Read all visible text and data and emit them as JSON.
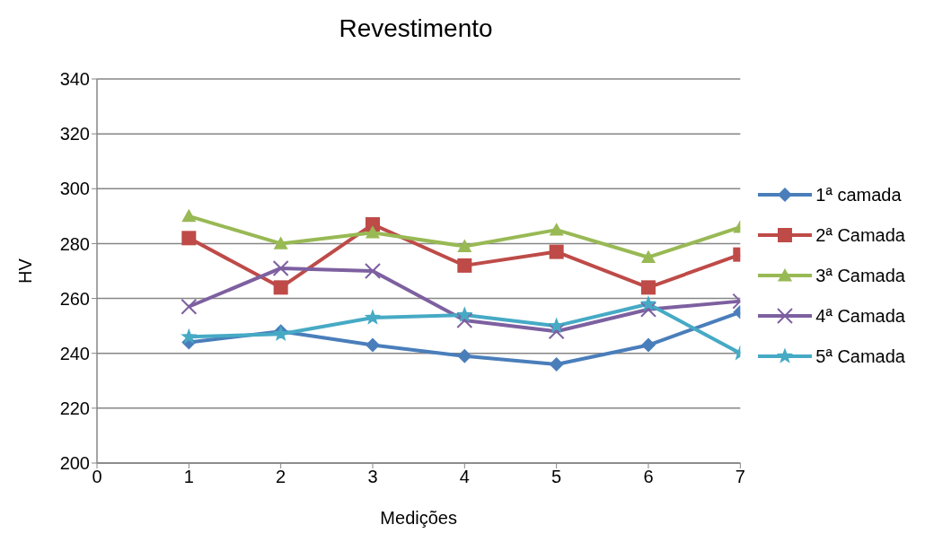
{
  "chart_data": {
    "type": "line",
    "title": "Revestimento",
    "xlabel": "Medições",
    "ylabel": "HV",
    "x": [
      1,
      2,
      3,
      4,
      5,
      6,
      7
    ],
    "xlim": [
      0,
      7
    ],
    "xticks": [
      0,
      1,
      2,
      3,
      4,
      5,
      6,
      7
    ],
    "ylim": [
      200,
      340
    ],
    "yticks": [
      200,
      220,
      240,
      260,
      280,
      300,
      320,
      340
    ],
    "grid": "y",
    "legend": "right",
    "line_style": "solid",
    "series": [
      {
        "name": "1ª camada",
        "color": "#4a7ebb",
        "marker": "diamond",
        "values": [
          244,
          248,
          243,
          239,
          236,
          243,
          255
        ]
      },
      {
        "name": "2ª Camada",
        "color": "#be4b48",
        "marker": "square",
        "values": [
          282,
          264,
          287,
          272,
          277,
          264,
          276
        ]
      },
      {
        "name": "3ª Camada",
        "color": "#98b954",
        "marker": "triangle",
        "values": [
          290,
          280,
          284,
          279,
          285,
          275,
          286
        ]
      },
      {
        "name": "4ª Camada",
        "color": "#7d60a0",
        "marker": "cross",
        "values": [
          257,
          271,
          270,
          252,
          248,
          256,
          259
        ]
      },
      {
        "name": "5ª Camada",
        "color": "#46aac5",
        "marker": "star",
        "values": [
          246,
          247,
          253,
          254,
          250,
          258,
          240
        ]
      }
    ]
  }
}
